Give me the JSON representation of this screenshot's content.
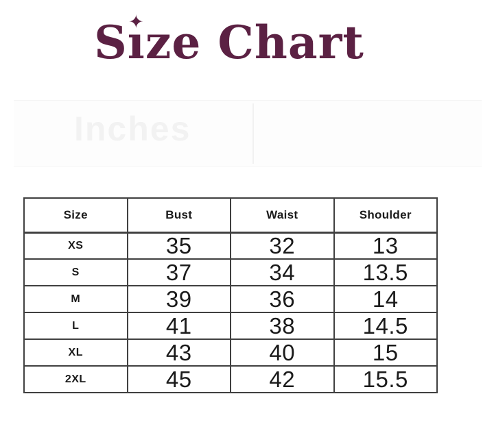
{
  "page": {
    "background_color": "#ffffff"
  },
  "title": {
    "text": "Size Chart",
    "part_before_i": "S",
    "dotless_i": "ı",
    "sparkle_icon": "✦",
    "part_after_i": "ze Chart",
    "color": "#5b2143"
  },
  "watermark": {
    "text": "Inches",
    "color": "#f2f2f2"
  },
  "table": {
    "border_color": "#404040",
    "text_color": "#1b1b1b",
    "headers": [
      "Size",
      "Bust",
      "Waist",
      "Shoulder"
    ],
    "rows": [
      {
        "size": "XS",
        "bust": "35",
        "waist": "32",
        "shoulder": "13"
      },
      {
        "size": "S",
        "bust": "37",
        "waist": "34",
        "shoulder": "13.5"
      },
      {
        "size": "M",
        "bust": "39",
        "waist": "36",
        "shoulder": "14"
      },
      {
        "size": "L",
        "bust": "41",
        "waist": "38",
        "shoulder": "14.5"
      },
      {
        "size": "XL",
        "bust": "43",
        "waist": "40",
        "shoulder": "15"
      },
      {
        "size": "2XL",
        "bust": "45",
        "waist": "42",
        "shoulder": "15.5"
      }
    ]
  },
  "chart_data": {
    "type": "table",
    "title": "Size Chart",
    "unit_watermark": "Inches",
    "columns": [
      "Size",
      "Bust",
      "Waist",
      "Shoulder"
    ],
    "rows": [
      [
        "XS",
        35,
        32,
        13
      ],
      [
        "S",
        37,
        34,
        13.5
      ],
      [
        "M",
        39,
        36,
        14
      ],
      [
        "L",
        41,
        38,
        14.5
      ],
      [
        "XL",
        43,
        40,
        15
      ],
      [
        "2XL",
        45,
        42,
        15.5
      ]
    ]
  }
}
